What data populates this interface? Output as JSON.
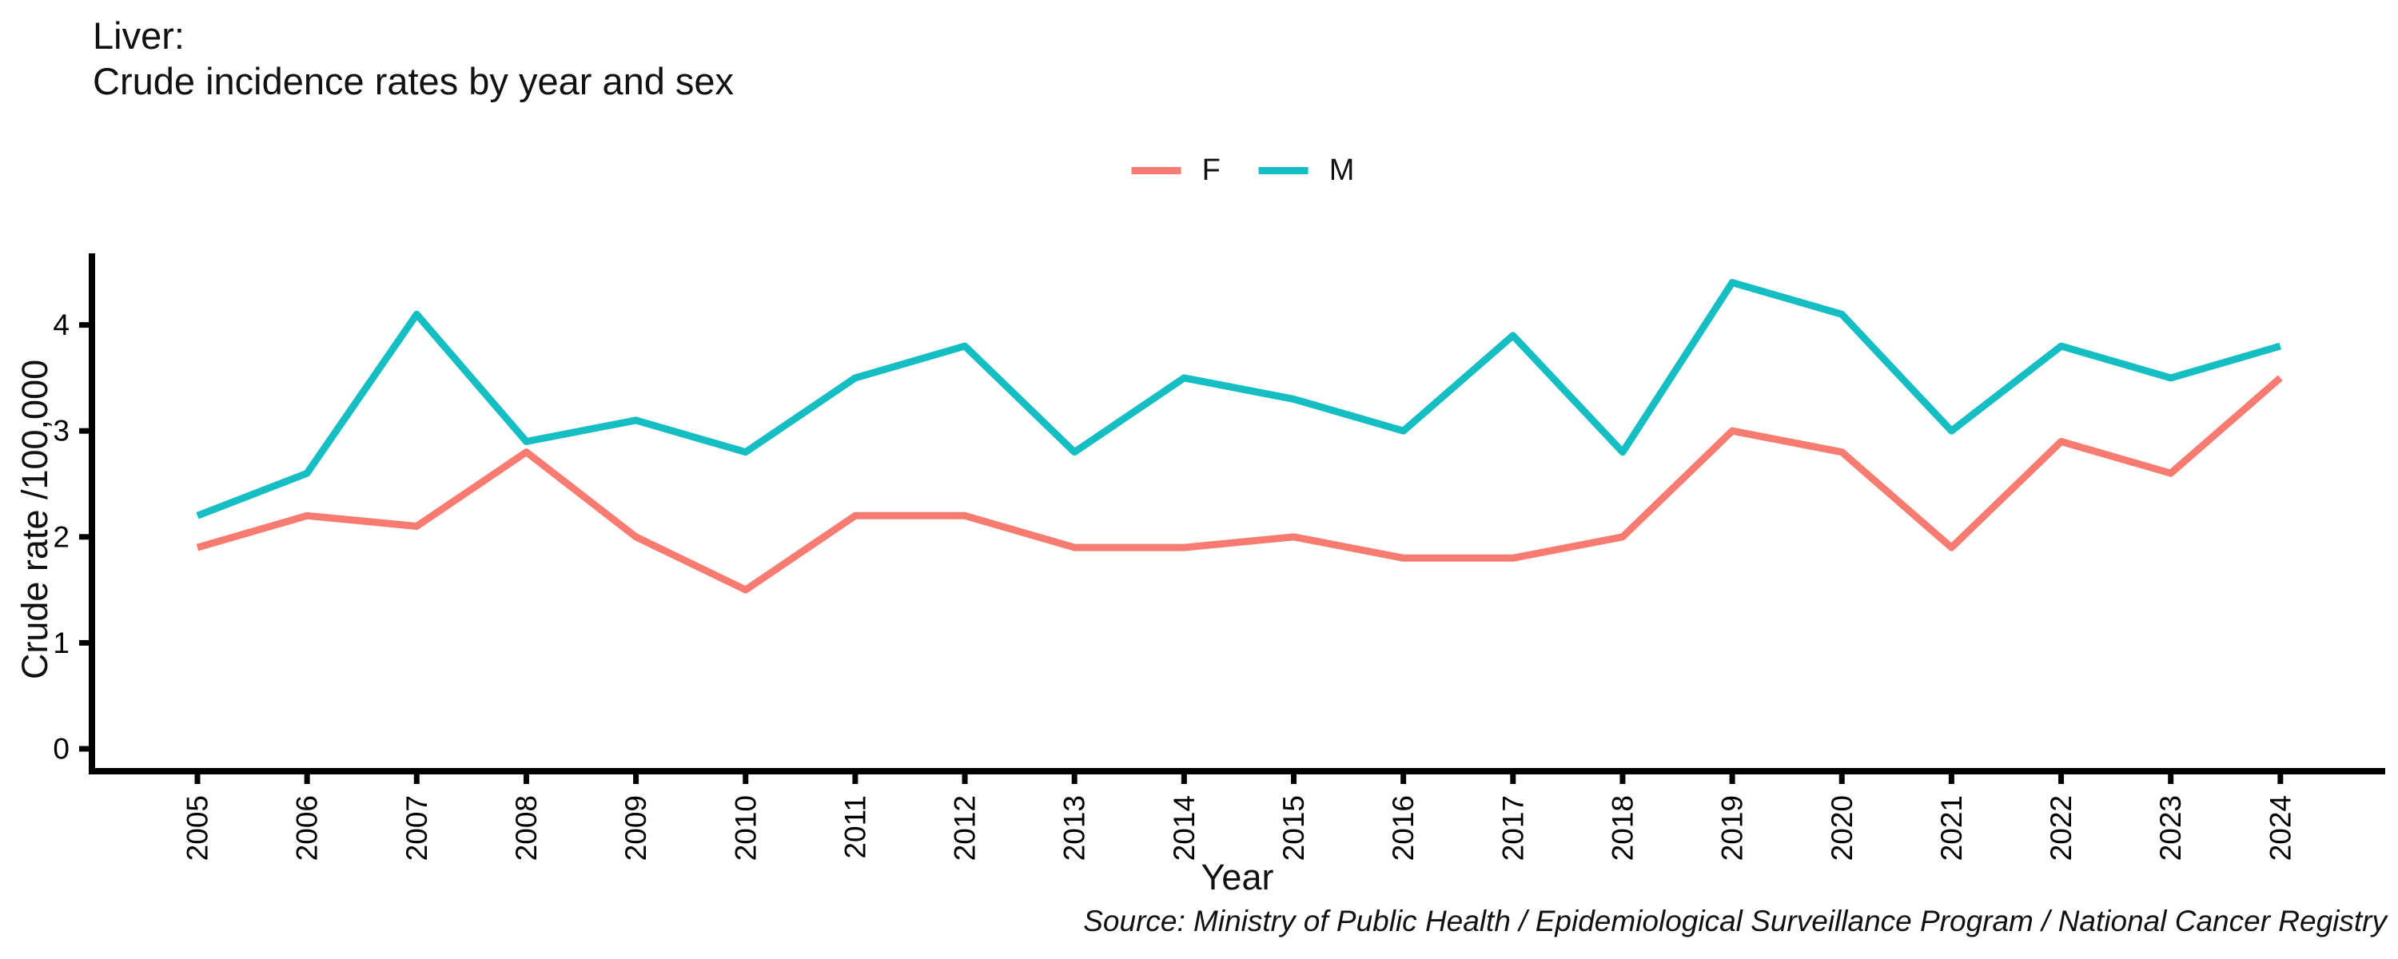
{
  "title": {
    "line1": "Liver:",
    "line2": "Crude incidence rates by year and sex"
  },
  "legend": {
    "items": [
      {
        "label": "F",
        "color": "#F87B72"
      },
      {
        "label": "M",
        "color": "#15BEC3"
      }
    ]
  },
  "source": "Source: Ministry of Public Health / Epidemiological Surveillance Program / National Cancer Registry",
  "chart_data": {
    "type": "line",
    "title": "Liver: Crude incidence rates by year and sex",
    "xlabel": "Year",
    "ylabel": "Crude rate /100,000",
    "x": [
      2005,
      2006,
      2007,
      2008,
      2009,
      2010,
      2011,
      2012,
      2013,
      2014,
      2015,
      2016,
      2017,
      2018,
      2019,
      2020,
      2021,
      2022,
      2023,
      2024
    ],
    "series": [
      {
        "name": "F",
        "color": "#F87B72",
        "values": [
          1.9,
          2.2,
          2.1,
          2.8,
          2.0,
          1.5,
          2.2,
          2.2,
          1.9,
          1.9,
          2.0,
          1.8,
          1.8,
          2.0,
          3.0,
          2.8,
          1.9,
          2.9,
          2.6,
          3.5
        ]
      },
      {
        "name": "M",
        "color": "#15BEC3",
        "values": [
          2.2,
          2.6,
          4.1,
          2.9,
          3.1,
          2.8,
          3.5,
          3.8,
          2.8,
          3.5,
          3.3,
          3.0,
          3.9,
          2.8,
          4.4,
          4.1,
          3.0,
          3.8,
          3.5,
          3.8
        ]
      }
    ],
    "y_ticks": [
      0,
      1,
      2,
      3,
      4
    ],
    "ylim": [
      -0.22,
      4.62
    ],
    "grid": false,
    "legend_position": "top-center",
    "axis_color": "#000000"
  }
}
